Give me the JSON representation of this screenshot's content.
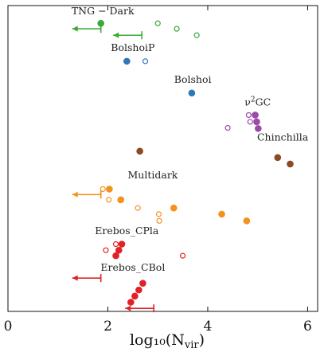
{
  "chart_data": {
    "type": "scatter",
    "title": "",
    "xlabel": "log₁₀(N",
    "xlabel_sub": "vir",
    "xlabel_close": ")",
    "ylabel": "",
    "xlim": [
      0,
      6.2
    ],
    "ylim": [
      0,
      1
    ],
    "x_ticks": [
      0,
      2,
      4,
      6
    ],
    "y_ticks": [],
    "grid": false,
    "legend": "none",
    "groups": [
      {
        "name": "TNG − Dark",
        "label_prefix": "",
        "label_sup": "",
        "label_rest": "",
        "color": "#3aaa35",
        "label_at": [
          1.9,
          0.972
        ],
        "filled": [
          [
            1.86,
            0.942
          ]
        ],
        "open": [
          [
            3.0,
            0.942
          ],
          [
            3.38,
            0.924
          ],
          [
            3.78,
            0.903
          ]
        ],
        "limits": [
          [
            1.86,
            0.924
          ],
          [
            2.68,
            0.903
          ]
        ]
      },
      {
        "name": "BolshoiP",
        "label_prefix": "",
        "label_sup": "",
        "label_rest": "",
        "color": "#2f78b8",
        "label_at": [
          2.5,
          0.852
        ],
        "filled": [
          [
            2.38,
            0.818
          ]
        ],
        "open": [
          [
            2.75,
            0.818
          ]
        ],
        "limits": []
      },
      {
        "name": "Bolshoi",
        "label_prefix": "",
        "label_sup": "",
        "label_rest": "",
        "color": "#2f78b8",
        "label_at": [
          3.7,
          0.748
        ],
        "filled": [
          [
            3.68,
            0.714
          ]
        ],
        "open": [],
        "limits": []
      },
      {
        "name": "ν²GC",
        "label_prefix": "ν",
        "label_sup": "2",
        "label_rest": "GC",
        "color": "#9b4aa8",
        "label_at": [
          5.0,
          0.673
        ],
        "filled": [
          [
            4.95,
            0.642
          ],
          [
            4.98,
            0.62
          ],
          [
            5.01,
            0.598
          ]
        ],
        "open": [
          [
            4.82,
            0.642
          ],
          [
            4.85,
            0.62
          ],
          [
            4.4,
            0.6
          ]
        ],
        "limits": []
      },
      {
        "name": "Chinchilla",
        "label_prefix": "",
        "label_sup": "",
        "label_rest": "",
        "color": "#8b4a22",
        "label_at": [
          5.5,
          0.558
        ],
        "filled": [
          [
            2.64,
            0.524
          ],
          [
            5.4,
            0.503
          ],
          [
            5.65,
            0.482
          ]
        ],
        "open": [],
        "limits": []
      },
      {
        "name": "Multidark",
        "label_prefix": "",
        "label_sup": "",
        "label_rest": "",
        "color": "#f5921e",
        "label_at": [
          2.9,
          0.435
        ],
        "filled": [
          [
            2.03,
            0.4
          ],
          [
            2.26,
            0.365
          ],
          [
            3.32,
            0.338
          ],
          [
            4.28,
            0.318
          ],
          [
            4.78,
            0.296
          ]
        ],
        "open": [
          [
            1.9,
            0.4
          ],
          [
            2.02,
            0.365
          ],
          [
            2.25,
            0.363
          ],
          [
            2.6,
            0.338
          ],
          [
            3.02,
            0.318
          ],
          [
            3.03,
            0.296
          ]
        ],
        "limits": [
          [
            1.86,
            0.382
          ]
        ]
      },
      {
        "name": "Erebos_CPla",
        "label_prefix": "",
        "label_sup": "",
        "label_rest": "",
        "color": "#e02228",
        "label_at": [
          2.38,
          0.252
        ],
        "filled": [
          [
            2.28,
            0.22
          ],
          [
            2.22,
            0.2
          ],
          [
            2.16,
            0.182
          ]
        ],
        "open": [
          [
            2.16,
            0.22
          ],
          [
            1.96,
            0.2
          ],
          [
            3.5,
            0.182
          ]
        ],
        "limits": []
      },
      {
        "name": "Erebos_CBol",
        "label_prefix": "",
        "label_sup": "",
        "label_rest": "",
        "color": "#e02228",
        "label_at": [
          2.5,
          0.133
        ],
        "filled": [
          [
            2.7,
            0.092
          ],
          [
            2.62,
            0.07
          ],
          [
            2.54,
            0.05
          ],
          [
            2.46,
            0.03
          ]
        ],
        "open": [],
        "limits": [
          [
            1.86,
            0.109
          ],
          [
            2.92,
            0.01
          ]
        ]
      }
    ]
  }
}
